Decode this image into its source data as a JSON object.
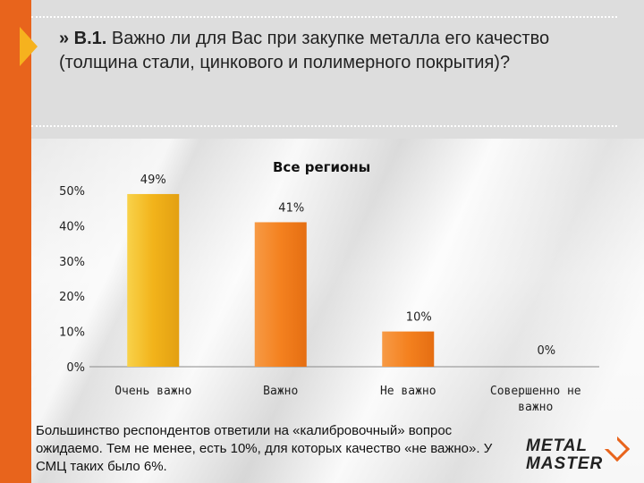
{
  "slide": {
    "question_marker": "» В.1.",
    "question_text": "Важно ли для Вас при закупке металла его качество (толщина стали, цинкового и полимерного покрытия)?",
    "note": "Большинство респондентов ответили на «калибровочный» вопрос ожидаемо. Тем не менее, есть 10%, для которых качество «не важно». У СМЦ таких было 6%.",
    "logo_line1": "METAL",
    "logo_line2": "MASTER",
    "colors": {
      "accent": "#e8641c",
      "arrow": "#f6b21e",
      "bar_first": "#f2b31a",
      "bar_other": "#f4811f",
      "header": "#dddddd"
    }
  },
  "chart_data": {
    "type": "bar",
    "title": "Все регионы",
    "categories": [
      "Очень важно",
      "Важно",
      "Не важно",
      "Совершенно не важно"
    ],
    "values": [
      49,
      41,
      10,
      0
    ],
    "data_labels": [
      "49%",
      "41%",
      "10%",
      "0%"
    ],
    "ylim": [
      0,
      50
    ],
    "yticks": [
      0,
      10,
      20,
      30,
      40,
      50
    ],
    "ytick_labels": [
      "0%",
      "10%",
      "20%",
      "30%",
      "40%",
      "50%"
    ],
    "xlabel": "",
    "ylabel": "",
    "legend": false
  }
}
